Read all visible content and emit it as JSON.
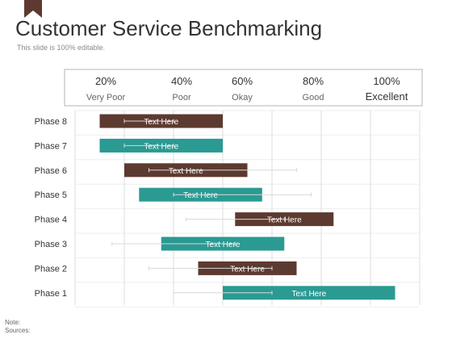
{
  "header": {
    "title": "Customer Service Benchmarking",
    "subtitle": "This slide is 100% editable."
  },
  "footer": {
    "note_label": "Note:",
    "sources_label": "Sources:"
  },
  "colors": {
    "brown": "#5d3a2f",
    "teal": "#2a9a92",
    "flag": "#5d3a2f",
    "grid": "#dedede",
    "frame": "#b5b5b5"
  },
  "chart_data": {
    "type": "bar",
    "orientation": "horizontal",
    "title": "",
    "xlim": [
      0,
      100
    ],
    "grid": true,
    "scale": [
      {
        "value": "20%",
        "label": "Very Poor"
      },
      {
        "value": "40%",
        "label": "Poor"
      },
      {
        "value": "60%",
        "label": "Okay"
      },
      {
        "value": "80%",
        "label": "Good"
      },
      {
        "value": "100%",
        "label": "Excellent"
      }
    ],
    "categories": [
      "Phase 8",
      "Phase 7",
      "Phase 6",
      "Phase 5",
      "Phase 4",
      "Phase 3",
      "Phase 2",
      "Phase 1"
    ],
    "bars": [
      {
        "category": "Phase 8",
        "start": 10,
        "end": 60,
        "label": "Text Here",
        "color": "brown"
      },
      {
        "category": "Phase 7",
        "start": 10,
        "end": 60,
        "label": "Text Here",
        "color": "teal"
      },
      {
        "category": "Phase 6",
        "start": 20,
        "end": 70,
        "label": "Text Here",
        "color": "brown"
      },
      {
        "category": "Phase 5",
        "start": 26,
        "end": 76,
        "label": "Text Here",
        "color": "teal"
      },
      {
        "category": "Phase 4",
        "start": 65,
        "end": 105,
        "label": "Text Here",
        "color": "brown"
      },
      {
        "category": "Phase 3",
        "start": 35,
        "end": 85,
        "label": "Text Here",
        "color": "teal"
      },
      {
        "category": "Phase 2",
        "start": 50,
        "end": 90,
        "label": "Text Here",
        "color": "brown"
      },
      {
        "category": "Phase 1",
        "start": 60,
        "end": 130,
        "label": "Text Here",
        "color": "teal"
      }
    ],
    "whiskers": [
      {
        "category": "Phase 8",
        "low": 20,
        "high": 40
      },
      {
        "category": "Phase 7",
        "low": 20,
        "high": 40
      },
      {
        "category": "Phase 6",
        "low": 30,
        "high": 90
      },
      {
        "category": "Phase 5",
        "low": 40,
        "high": 96
      },
      {
        "category": "Phase 4",
        "low": 45,
        "high": 85
      },
      {
        "category": "Phase 3",
        "low": 15,
        "high": 65
      },
      {
        "category": "Phase 2",
        "low": 30,
        "high": 80
      },
      {
        "category": "Phase 1",
        "low": 40,
        "high": 80
      }
    ]
  }
}
